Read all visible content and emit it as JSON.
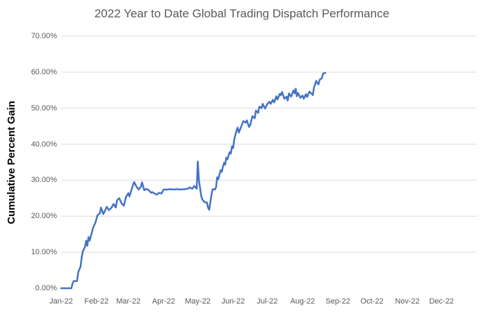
{
  "chart_data": {
    "type": "line",
    "title": "2022 Year to Date Global Trading Dispatch Performance",
    "ylabel": "Cumulative Percent Gain",
    "xlabel": "",
    "ylim": [
      0,
      70
    ],
    "grid": "horizontal-only",
    "gridline_color": "#D9D9D9",
    "legend_position": "none",
    "background_color": "#FFFFFF",
    "title_color": "#595959",
    "tick_label_color": "#595959",
    "y_ticks": [
      {
        "value": 0,
        "label": "0.00%"
      },
      {
        "value": 10,
        "label": "10.00%"
      },
      {
        "value": 20,
        "label": "20.00%"
      },
      {
        "value": 30,
        "label": "30.00%"
      },
      {
        "value": 40,
        "label": "40.00%"
      },
      {
        "value": 50,
        "label": "50.00%"
      },
      {
        "value": 60,
        "label": "60.00%"
      },
      {
        "value": 70,
        "label": "70.00%"
      }
    ],
    "x_ticks": [
      {
        "day": 1,
        "label": "Jan-22"
      },
      {
        "day": 32,
        "label": "Feb-22"
      },
      {
        "day": 60,
        "label": "Mar-22"
      },
      {
        "day": 91,
        "label": "Apr-22"
      },
      {
        "day": 121,
        "label": "May-22"
      },
      {
        "day": 152,
        "label": "Jun-22"
      },
      {
        "day": 182,
        "label": "Jul-22"
      },
      {
        "day": 213,
        "label": "Aug-22"
      },
      {
        "day": 244,
        "label": "Sep-22"
      },
      {
        "day": 274,
        "label": "Oct-22"
      },
      {
        "day": 305,
        "label": "Nov-22"
      },
      {
        "day": 335,
        "label": "Dec-22"
      }
    ],
    "x_axis_domain_days": [
      1,
      366
    ],
    "series": [
      {
        "name": "Cumulative Percent Gain",
        "color": "#4472C4",
        "line_width": 2.5,
        "points_format": [
          "day_of_year_2022",
          "cumulative_percent_gain"
        ],
        "points": [
          [
            1,
            0.0
          ],
          [
            6,
            0.0
          ],
          [
            10,
            0.0
          ],
          [
            11,
            1.3
          ],
          [
            12,
            2.0
          ],
          [
            15,
            2.0
          ],
          [
            16,
            4.5
          ],
          [
            18,
            6.0
          ],
          [
            19,
            8.5
          ],
          [
            20,
            10.2
          ],
          [
            22,
            11.5
          ],
          [
            23,
            13.2
          ],
          [
            24,
            11.8
          ],
          [
            25,
            14.2
          ],
          [
            26,
            13.2
          ],
          [
            28,
            15.5
          ],
          [
            29,
            16.8
          ],
          [
            31,
            18.2
          ],
          [
            33,
            20.3
          ],
          [
            35,
            20.8
          ],
          [
            36,
            22.4
          ],
          [
            38,
            20.6
          ],
          [
            39,
            21.2
          ],
          [
            41,
            22.6
          ],
          [
            43,
            21.7
          ],
          [
            45,
            22.3
          ],
          [
            47,
            23.4
          ],
          [
            49,
            22.4
          ],
          [
            50,
            24.4
          ],
          [
            52,
            25.0
          ],
          [
            54,
            23.6
          ],
          [
            56,
            22.9
          ],
          [
            58,
            25.4
          ],
          [
            60,
            26.4
          ],
          [
            61,
            25.5
          ],
          [
            63,
            27.6
          ],
          [
            65,
            29.5
          ],
          [
            67,
            28.3
          ],
          [
            69,
            27.4
          ],
          [
            71,
            28.2
          ],
          [
            72,
            29.4
          ],
          [
            74,
            27.2
          ],
          [
            76,
            27.6
          ],
          [
            78,
            27.2
          ],
          [
            80,
            26.5
          ],
          [
            81,
            26.7
          ],
          [
            83,
            26.3
          ],
          [
            85,
            26.0
          ],
          [
            87,
            26.5
          ],
          [
            89,
            26.3
          ],
          [
            91,
            27.4
          ],
          [
            94,
            27.4
          ],
          [
            97,
            27.5
          ],
          [
            100,
            27.4
          ],
          [
            103,
            27.5
          ],
          [
            106,
            27.4
          ],
          [
            109,
            27.5
          ],
          [
            112,
            27.6
          ],
          [
            114,
            28.0
          ],
          [
            116,
            27.6
          ],
          [
            118,
            28.4
          ],
          [
            120,
            27.6
          ],
          [
            121,
            35.2
          ],
          [
            122,
            30.0
          ],
          [
            124,
            25.6
          ],
          [
            125,
            24.6
          ],
          [
            127,
            23.9
          ],
          [
            129,
            23.8
          ],
          [
            130,
            22.4
          ],
          [
            131,
            21.8
          ],
          [
            133,
            26.0
          ],
          [
            134,
            27.5
          ],
          [
            136,
            27.4
          ],
          [
            137,
            28.0
          ],
          [
            138,
            30.8
          ],
          [
            139,
            30.3
          ],
          [
            141,
            32.8
          ],
          [
            142,
            32.3
          ],
          [
            144,
            34.8
          ],
          [
            145,
            34.3
          ],
          [
            146,
            36.3
          ],
          [
            147,
            35.8
          ],
          [
            149,
            37.8
          ],
          [
            150,
            37.4
          ],
          [
            151,
            39.4
          ],
          [
            152,
            38.9
          ],
          [
            153,
            41.3
          ],
          [
            155,
            43.8
          ],
          [
            156,
            44.6
          ],
          [
            157,
            43.2
          ],
          [
            159,
            44.8
          ],
          [
            161,
            46.4
          ],
          [
            163,
            46.0
          ],
          [
            164,
            46.6
          ],
          [
            166,
            44.8
          ],
          [
            167,
            45.3
          ],
          [
            169,
            47.8
          ],
          [
            171,
            47.2
          ],
          [
            172,
            49.3
          ],
          [
            174,
            48.7
          ],
          [
            175,
            50.4
          ],
          [
            177,
            50.0
          ],
          [
            178,
            51.2
          ],
          [
            180,
            49.9
          ],
          [
            182,
            51.1
          ],
          [
            184,
            51.8
          ],
          [
            185,
            51.2
          ],
          [
            187,
            52.3
          ],
          [
            188,
            51.6
          ],
          [
            190,
            53.3
          ],
          [
            191,
            52.4
          ],
          [
            193,
            54.0
          ],
          [
            194,
            53.6
          ],
          [
            195,
            54.5
          ],
          [
            197,
            52.6
          ],
          [
            199,
            53.2
          ],
          [
            200,
            52.1
          ],
          [
            201,
            54.1
          ],
          [
            203,
            53.2
          ],
          [
            205,
            54.9
          ],
          [
            206,
            54.1
          ],
          [
            207,
            55.4
          ],
          [
            208,
            53.3
          ],
          [
            209,
            54.2
          ],
          [
            211,
            52.9
          ],
          [
            213,
            53.5
          ],
          [
            214,
            52.6
          ],
          [
            216,
            53.9
          ],
          [
            217,
            53.1
          ],
          [
            219,
            54.6
          ],
          [
            221,
            54.0
          ],
          [
            222,
            53.6
          ],
          [
            223,
            55.7
          ],
          [
            225,
            57.6
          ],
          [
            226,
            56.9
          ],
          [
            227,
            56.6
          ],
          [
            228,
            57.9
          ],
          [
            230,
            58.3
          ],
          [
            231,
            59.6
          ],
          [
            233,
            59.8
          ]
        ]
      }
    ]
  }
}
